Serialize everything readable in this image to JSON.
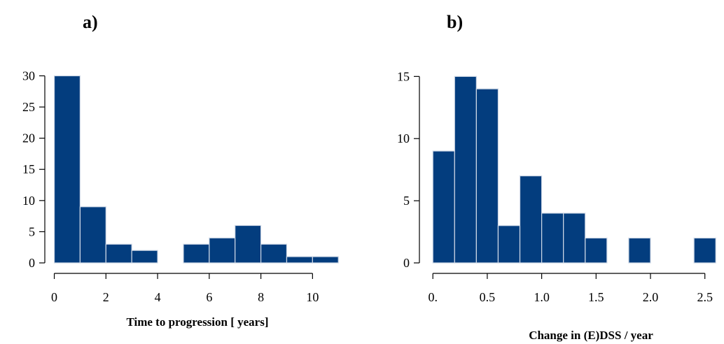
{
  "chart_data": [
    {
      "type": "bar",
      "panel_label": "a)",
      "xlabel": "Time to progression [ years]",
      "ylabel": "",
      "bin_edges": [
        0,
        1,
        2,
        3,
        4,
        5,
        6,
        7,
        8,
        9,
        10,
        11
      ],
      "values": [
        30,
        9,
        3,
        2,
        0,
        3,
        4,
        6,
        3,
        1,
        1
      ],
      "xticks": [
        0,
        2,
        4,
        6,
        8,
        10
      ],
      "xtick_labels": [
        "0",
        "2",
        "4",
        "6",
        "8",
        "10"
      ],
      "yticks": [
        0,
        5,
        10,
        15,
        20,
        25,
        30
      ],
      "ytick_labels": [
        "0",
        "5",
        "10",
        "15",
        "20",
        "25",
        "30"
      ],
      "xlim": [
        -0.15,
        11.4
      ],
      "ylim": [
        0,
        30.5
      ],
      "bar_color": "#033d7e",
      "grid": false
    },
    {
      "type": "bar",
      "panel_label": "b)",
      "xlabel": "Change in (E)DSS / year",
      "ylabel": "",
      "bin_edges": [
        0,
        0.2,
        0.4,
        0.6,
        0.8,
        1.0,
        1.2,
        1.4,
        1.6,
        1.8,
        2.0,
        2.2,
        2.4,
        2.6
      ],
      "values": [
        9,
        15,
        14,
        3,
        7,
        4,
        4,
        2,
        0,
        2,
        0,
        0,
        2
      ],
      "xticks": [
        0,
        0.5,
        1.0,
        1.5,
        2.0,
        2.5
      ],
      "xtick_labels": [
        "0.",
        "0.5",
        "1.0",
        "1.5",
        "2.0",
        "2.5"
      ],
      "yticks": [
        0,
        5,
        10,
        15
      ],
      "ytick_labels": [
        "0",
        "5",
        "10",
        "15"
      ],
      "xlim": [
        -0.04,
        2.65
      ],
      "ylim": [
        0,
        15.3
      ],
      "bar_color": "#033d7e",
      "grid": false
    }
  ]
}
